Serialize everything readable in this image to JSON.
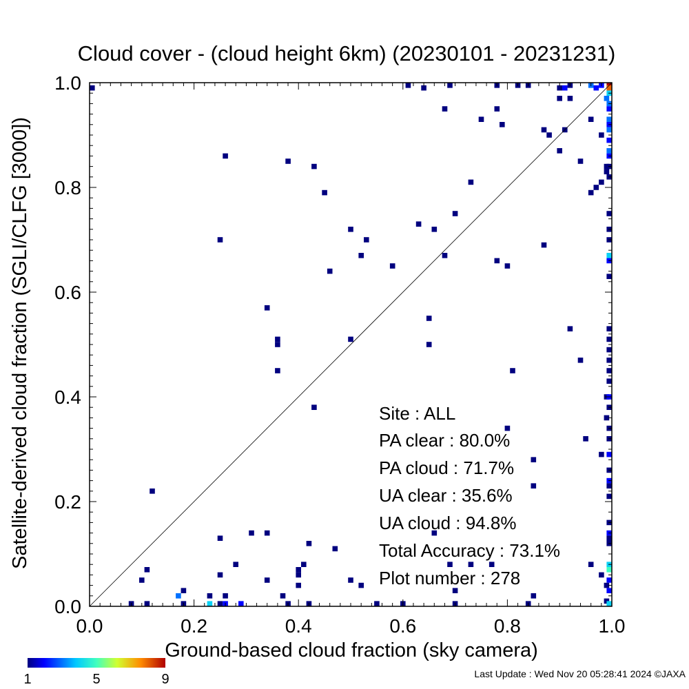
{
  "chart_data": {
    "type": "heatmap",
    "title": "Cloud cover - (cloud height 6km)  (20230101 - 20231231)",
    "xlabel": "Ground-based cloud fraction (sky camera)",
    "ylabel": "Satellite-derived cloud fraction (SGLI/CLFG [3000])",
    "xlim": [
      0,
      1
    ],
    "ylim": [
      0,
      1
    ],
    "x_ticks": [
      "0.0",
      "0.2",
      "0.4",
      "0.6",
      "0.8",
      "1.0"
    ],
    "y_ticks": [
      "0.0",
      "0.2",
      "0.4",
      "0.6",
      "0.8",
      "1.0"
    ],
    "diagonal_line": true,
    "colorbar": {
      "min": 1,
      "max": 9,
      "ticks": [
        "1",
        "5",
        "9"
      ]
    },
    "stats": {
      "site": "Site : ALL",
      "pa_clear": "PA clear :  80.0%",
      "pa_cloud": "PA cloud :  71.7%",
      "ua_clear": "UA clear :  35.6%",
      "ua_cloud": "UA cloud :  94.8%",
      "total_accuracy": "Total Accuracy :  73.1%",
      "plot_number": "Plot number :       278"
    },
    "cells": [
      {
        "x": 0.0,
        "y": 0.99,
        "c": 1
      },
      {
        "x": 0.61,
        "y": 1.0,
        "c": 1
      },
      {
        "x": 0.64,
        "y": 0.99,
        "c": 1
      },
      {
        "x": 0.69,
        "y": 1.0,
        "c": 1
      },
      {
        "x": 0.78,
        "y": 1.0,
        "c": 1
      },
      {
        "x": 0.82,
        "y": 1.0,
        "c": 1
      },
      {
        "x": 0.84,
        "y": 1.0,
        "c": 1
      },
      {
        "x": 0.9,
        "y": 0.99,
        "c": 1
      },
      {
        "x": 0.91,
        "y": 0.99,
        "c": 2
      },
      {
        "x": 0.92,
        "y": 1.0,
        "c": 1
      },
      {
        "x": 0.96,
        "y": 1.0,
        "c": 3
      },
      {
        "x": 0.97,
        "y": 0.99,
        "c": 2
      },
      {
        "x": 0.98,
        "y": 1.0,
        "c": 2
      },
      {
        "x": 1.0,
        "y": 1.0,
        "c": 9
      },
      {
        "x": 1.0,
        "y": 0.99,
        "c": 8
      },
      {
        "x": 1.0,
        "y": 0.98,
        "c": 4
      },
      {
        "x": 0.99,
        "y": 0.97,
        "c": 3
      },
      {
        "x": 1.0,
        "y": 0.96,
        "c": 3
      },
      {
        "x": 1.0,
        "y": 0.95,
        "c": 2
      },
      {
        "x": 1.0,
        "y": 0.93,
        "c": 3
      },
      {
        "x": 1.0,
        "y": 0.92,
        "c": 2
      },
      {
        "x": 1.0,
        "y": 0.91,
        "c": 3
      },
      {
        "x": 1.0,
        "y": 0.89,
        "c": 2
      },
      {
        "x": 1.0,
        "y": 0.87,
        "c": 3
      },
      {
        "x": 1.0,
        "y": 0.86,
        "c": 2
      },
      {
        "x": 1.0,
        "y": 0.84,
        "c": 1
      },
      {
        "x": 1.0,
        "y": 0.82,
        "c": 1
      },
      {
        "x": 0.68,
        "y": 0.95,
        "c": 1
      },
      {
        "x": 0.78,
        "y": 0.95,
        "c": 1
      },
      {
        "x": 0.75,
        "y": 0.93,
        "c": 1
      },
      {
        "x": 0.79,
        "y": 0.92,
        "c": 1
      },
      {
        "x": 0.9,
        "y": 0.97,
        "c": 1
      },
      {
        "x": 0.92,
        "y": 0.97,
        "c": 1
      },
      {
        "x": 0.91,
        "y": 0.91,
        "c": 1
      },
      {
        "x": 0.96,
        "y": 0.93,
        "c": 1
      },
      {
        "x": 0.87,
        "y": 0.91,
        "c": 1
      },
      {
        "x": 0.88,
        "y": 0.9,
        "c": 1
      },
      {
        "x": 0.98,
        "y": 0.9,
        "c": 1
      },
      {
        "x": 0.9,
        "y": 0.87,
        "c": 1
      },
      {
        "x": 0.94,
        "y": 0.85,
        "c": 1
      },
      {
        "x": 0.99,
        "y": 0.84,
        "c": 1
      },
      {
        "x": 0.99,
        "y": 0.83,
        "c": 1
      },
      {
        "x": 0.98,
        "y": 0.81,
        "c": 1
      },
      {
        "x": 0.96,
        "y": 0.79,
        "c": 1
      },
      {
        "x": 0.97,
        "y": 0.8,
        "c": 1
      },
      {
        "x": 0.26,
        "y": 0.86,
        "c": 1
      },
      {
        "x": 0.38,
        "y": 0.85,
        "c": 1
      },
      {
        "x": 0.43,
        "y": 0.84,
        "c": 1
      },
      {
        "x": 0.45,
        "y": 0.79,
        "c": 1
      },
      {
        "x": 0.73,
        "y": 0.81,
        "c": 1
      },
      {
        "x": 0.7,
        "y": 0.75,
        "c": 1
      },
      {
        "x": 0.63,
        "y": 0.73,
        "c": 1
      },
      {
        "x": 0.66,
        "y": 0.72,
        "c": 1
      },
      {
        "x": 0.5,
        "y": 0.72,
        "c": 1
      },
      {
        "x": 0.53,
        "y": 0.7,
        "c": 1
      },
      {
        "x": 0.25,
        "y": 0.7,
        "c": 1
      },
      {
        "x": 0.87,
        "y": 0.69,
        "c": 1
      },
      {
        "x": 0.52,
        "y": 0.67,
        "c": 1
      },
      {
        "x": 0.68,
        "y": 0.67,
        "c": 1
      },
      {
        "x": 0.78,
        "y": 0.66,
        "c": 1
      },
      {
        "x": 0.58,
        "y": 0.65,
        "c": 1
      },
      {
        "x": 0.8,
        "y": 0.65,
        "c": 1
      },
      {
        "x": 0.46,
        "y": 0.64,
        "c": 1
      },
      {
        "x": 0.34,
        "y": 0.57,
        "c": 1
      },
      {
        "x": 0.65,
        "y": 0.55,
        "c": 1
      },
      {
        "x": 0.92,
        "y": 0.53,
        "c": 1
      },
      {
        "x": 0.36,
        "y": 0.51,
        "c": 1
      },
      {
        "x": 0.36,
        "y": 0.5,
        "c": 1
      },
      {
        "x": 0.5,
        "y": 0.51,
        "c": 1
      },
      {
        "x": 0.65,
        "y": 0.5,
        "c": 1
      },
      {
        "x": 0.94,
        "y": 0.47,
        "c": 1
      },
      {
        "x": 0.36,
        "y": 0.45,
        "c": 1
      },
      {
        "x": 0.81,
        "y": 0.45,
        "c": 1
      },
      {
        "x": 0.43,
        "y": 0.38,
        "c": 1
      },
      {
        "x": 0.95,
        "y": 0.32,
        "c": 1
      },
      {
        "x": 0.98,
        "y": 0.29,
        "c": 1
      },
      {
        "x": 0.12,
        "y": 0.22,
        "c": 1
      },
      {
        "x": 1.0,
        "y": 0.75,
        "c": 1
      },
      {
        "x": 1.0,
        "y": 0.72,
        "c": 1
      },
      {
        "x": 1.0,
        "y": 0.7,
        "c": 1
      },
      {
        "x": 1.0,
        "y": 0.67,
        "c": 4
      },
      {
        "x": 1.0,
        "y": 0.66,
        "c": 2
      },
      {
        "x": 1.0,
        "y": 0.63,
        "c": 1
      },
      {
        "x": 1.0,
        "y": 0.53,
        "c": 1
      },
      {
        "x": 1.0,
        "y": 0.51,
        "c": 1
      },
      {
        "x": 1.0,
        "y": 0.49,
        "c": 1
      },
      {
        "x": 1.0,
        "y": 0.47,
        "c": 1
      },
      {
        "x": 1.0,
        "y": 0.45,
        "c": 1
      },
      {
        "x": 1.0,
        "y": 0.43,
        "c": 1
      },
      {
        "x": 0.99,
        "y": 0.4,
        "c": 1
      },
      {
        "x": 1.0,
        "y": 0.4,
        "c": 2
      },
      {
        "x": 1.0,
        "y": 0.38,
        "c": 1
      },
      {
        "x": 0.99,
        "y": 0.36,
        "c": 1
      },
      {
        "x": 1.0,
        "y": 0.34,
        "c": 1
      },
      {
        "x": 1.0,
        "y": 0.32,
        "c": 1
      },
      {
        "x": 1.0,
        "y": 0.29,
        "c": 2
      },
      {
        "x": 1.0,
        "y": 0.26,
        "c": 1
      },
      {
        "x": 1.0,
        "y": 0.24,
        "c": 2
      },
      {
        "x": 1.0,
        "y": 0.23,
        "c": 1
      },
      {
        "x": 1.0,
        "y": 0.21,
        "c": 1
      },
      {
        "x": 1.0,
        "y": 0.16,
        "c": 1
      },
      {
        "x": 1.0,
        "y": 0.14,
        "c": 2
      },
      {
        "x": 1.0,
        "y": 0.13,
        "c": 1
      },
      {
        "x": 1.0,
        "y": 0.12,
        "c": 1
      },
      {
        "x": 1.0,
        "y": 0.08,
        "c": 4
      },
      {
        "x": 1.0,
        "y": 0.07,
        "c": 5
      },
      {
        "x": 1.0,
        "y": 0.05,
        "c": 2
      },
      {
        "x": 0.99,
        "y": 0.04,
        "c": 1
      },
      {
        "x": 1.0,
        "y": 0.03,
        "c": 2
      },
      {
        "x": 0.99,
        "y": 0.01,
        "c": 1
      },
      {
        "x": 1.0,
        "y": 0.0,
        "c": 4
      },
      {
        "x": 0.98,
        "y": 0.06,
        "c": 1
      },
      {
        "x": 0.96,
        "y": 0.08,
        "c": 1
      },
      {
        "x": 0.25,
        "y": 0.13,
        "c": 1
      },
      {
        "x": 0.31,
        "y": 0.14,
        "c": 1
      },
      {
        "x": 0.34,
        "y": 0.14,
        "c": 1
      },
      {
        "x": 0.42,
        "y": 0.12,
        "c": 1
      },
      {
        "x": 0.47,
        "y": 0.11,
        "c": 1
      },
      {
        "x": 0.28,
        "y": 0.08,
        "c": 1
      },
      {
        "x": 0.41,
        "y": 0.08,
        "c": 1
      },
      {
        "x": 0.4,
        "y": 0.07,
        "c": 1
      },
      {
        "x": 0.4,
        "y": 0.06,
        "c": 1
      },
      {
        "x": 0.11,
        "y": 0.07,
        "c": 1
      },
      {
        "x": 0.25,
        "y": 0.06,
        "c": 1
      },
      {
        "x": 0.1,
        "y": 0.05,
        "c": 1
      },
      {
        "x": 0.34,
        "y": 0.05,
        "c": 1
      },
      {
        "x": 0.5,
        "y": 0.05,
        "c": 1
      },
      {
        "x": 0.52,
        "y": 0.04,
        "c": 1
      },
      {
        "x": 0.4,
        "y": 0.04,
        "c": 1
      },
      {
        "x": 0.7,
        "y": 0.03,
        "c": 1
      },
      {
        "x": 0.18,
        "y": 0.03,
        "c": 1
      },
      {
        "x": 0.37,
        "y": 0.02,
        "c": 1
      },
      {
        "x": 0.17,
        "y": 0.02,
        "c": 3
      },
      {
        "x": 0.26,
        "y": 0.02,
        "c": 1
      },
      {
        "x": 0.23,
        "y": 0.02,
        "c": 1
      },
      {
        "x": 0.85,
        "y": 0.02,
        "c": 1
      },
      {
        "x": 0.08,
        "y": 0.0,
        "c": 1
      },
      {
        "x": 0.11,
        "y": 0.0,
        "c": 1
      },
      {
        "x": 0.18,
        "y": 0.0,
        "c": 1
      },
      {
        "x": 0.23,
        "y": 0.0,
        "c": 4
      },
      {
        "x": 0.25,
        "y": 0.0,
        "c": 1
      },
      {
        "x": 0.26,
        "y": 0.0,
        "c": 2
      },
      {
        "x": 0.29,
        "y": 0.0,
        "c": 2
      },
      {
        "x": 0.38,
        "y": 0.0,
        "c": 1
      },
      {
        "x": 0.42,
        "y": 0.0,
        "c": 1
      },
      {
        "x": 0.55,
        "y": 0.0,
        "c": 1
      },
      {
        "x": 0.6,
        "y": 0.0,
        "c": 1
      },
      {
        "x": 0.7,
        "y": 0.0,
        "c": 1
      },
      {
        "x": 0.84,
        "y": 0.0,
        "c": 1
      },
      {
        "x": 0.73,
        "y": 0.08,
        "c": 1
      },
      {
        "x": 0.77,
        "y": 0.08,
        "c": 1
      },
      {
        "x": 0.69,
        "y": 0.08,
        "c": 1
      },
      {
        "x": 0.85,
        "y": 0.23,
        "c": 1
      },
      {
        "x": 0.85,
        "y": 0.28,
        "c": 1
      },
      {
        "x": 0.8,
        "y": 0.34,
        "c": 1
      },
      {
        "x": 0.66,
        "y": 0.14,
        "c": 1
      }
    ]
  },
  "footer": {
    "last_update": "Last Update : Wed Nov 20 05:28:41 2024  ©JAXA"
  }
}
